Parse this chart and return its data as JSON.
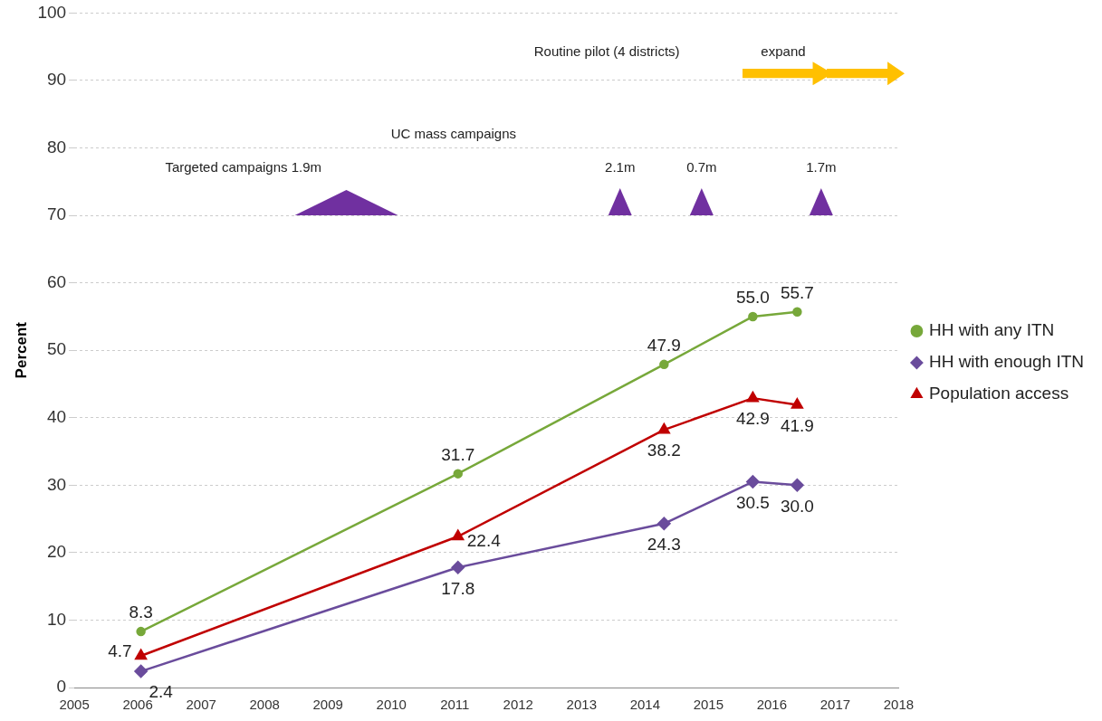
{
  "chart_data": {
    "type": "line",
    "ylabel": "Percent",
    "xlim": [
      2005,
      2018
    ],
    "xticks": [
      2005,
      2006,
      2007,
      2008,
      2009,
      2010,
      2011,
      2012,
      2013,
      2014,
      2015,
      2016,
      2017,
      2018
    ],
    "ylim": [
      0,
      100
    ],
    "yticks": [
      0,
      10,
      20,
      30,
      40,
      50,
      60,
      70,
      80,
      90,
      100
    ],
    "grid": "y",
    "legend": "right",
    "series": [
      {
        "name": "HH with any ITN",
        "color": "#77a83a",
        "marker": "circle",
        "x": [
          2006.05,
          2011.05,
          2014.3,
          2015.7,
          2016.4
        ],
        "values": [
          8.3,
          31.7,
          47.9,
          55.0,
          55.7
        ],
        "value_labels": [
          "8.3",
          "31.7",
          "47.9",
          "55.0",
          "55.7"
        ]
      },
      {
        "name": "HH with enough ITN",
        "color": "#6a4c9c",
        "marker": "diamond",
        "x": [
          2006.05,
          2011.05,
          2014.3,
          2015.7,
          2016.4
        ],
        "values": [
          2.4,
          17.8,
          24.3,
          30.5,
          30.0
        ],
        "value_labels": [
          "2.4",
          "17.8",
          "24.3",
          "30.5",
          "30.0"
        ]
      },
      {
        "name": "Population access",
        "color": "#c00000",
        "marker": "triangle",
        "x": [
          2006.05,
          2011.05,
          2014.3,
          2015.7,
          2016.4
        ],
        "values": [
          4.7,
          22.4,
          38.2,
          42.9,
          41.9
        ],
        "value_labels": [
          "4.7",
          "22.4",
          "38.2",
          "42.9",
          "41.9"
        ]
      }
    ],
    "annotations": [
      "Targeted campaigns 1.9m",
      "UC mass campaigns",
      "2.1m",
      "0.7m",
      "1.7m",
      "Routine pilot (4 districts)",
      "expand"
    ]
  }
}
